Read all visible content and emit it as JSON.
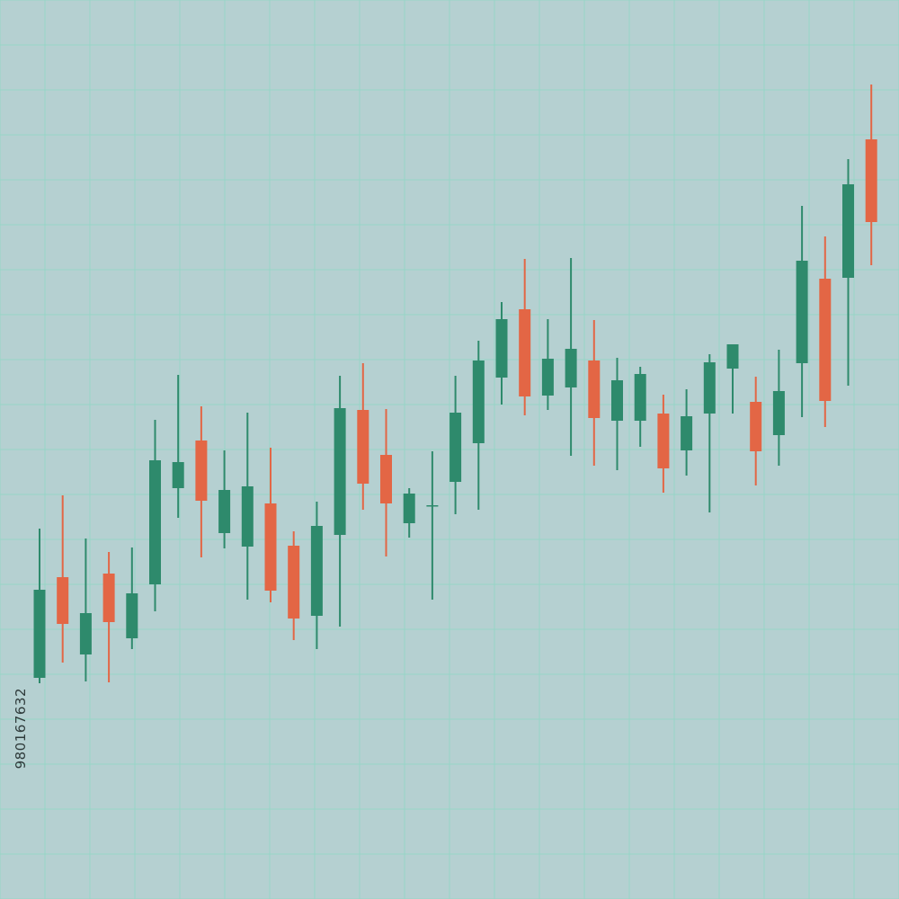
{
  "colors": {
    "background": "#b5d0d1",
    "grid": "#97d6c6",
    "up": "#2e8a6c",
    "down": "#e36645"
  },
  "watermark": {
    "id": "980167632"
  },
  "chart_data": {
    "type": "candlestick",
    "title": "",
    "xlabel": "",
    "ylabel": "",
    "grid": true,
    "legend": "none",
    "ylim": [
      0,
      1000
    ],
    "candles": [
      {
        "open": 246,
        "close": 344,
        "high": 412,
        "low": 240,
        "dir": "up"
      },
      {
        "open": 358,
        "close": 306,
        "high": 449,
        "low": 263,
        "dir": "down"
      },
      {
        "open": 272,
        "close": 318,
        "high": 401,
        "low": 242,
        "dir": "up"
      },
      {
        "open": 362,
        "close": 308,
        "high": 386,
        "low": 241,
        "dir": "down"
      },
      {
        "open": 290,
        "close": 340,
        "high": 391,
        "low": 278,
        "dir": "up"
      },
      {
        "open": 350,
        "close": 488,
        "high": 533,
        "low": 320,
        "dir": "up"
      },
      {
        "open": 457,
        "close": 486,
        "high": 583,
        "low": 424,
        "dir": "up"
      },
      {
        "open": 510,
        "close": 443,
        "high": 548,
        "low": 380,
        "dir": "down"
      },
      {
        "open": 407,
        "close": 455,
        "high": 499,
        "low": 390,
        "dir": "up"
      },
      {
        "open": 392,
        "close": 459,
        "high": 541,
        "low": 333,
        "dir": "up"
      },
      {
        "open": 440,
        "close": 343,
        "high": 502,
        "low": 330,
        "dir": "down"
      },
      {
        "open": 393,
        "close": 312,
        "high": 409,
        "low": 288,
        "dir": "down"
      },
      {
        "open": 315,
        "close": 415,
        "high": 442,
        "low": 278,
        "dir": "up"
      },
      {
        "open": 405,
        "close": 546,
        "high": 582,
        "low": 303,
        "dir": "up"
      },
      {
        "open": 544,
        "close": 462,
        "high": 596,
        "low": 433,
        "dir": "down"
      },
      {
        "open": 494,
        "close": 440,
        "high": 545,
        "low": 381,
        "dir": "down"
      },
      {
        "open": 418,
        "close": 451,
        "high": 457,
        "low": 402,
        "dir": "up"
      },
      {
        "open": 438,
        "close": 438,
        "high": 498,
        "low": 333,
        "dir": "up"
      },
      {
        "open": 464,
        "close": 541,
        "high": 582,
        "low": 428,
        "dir": "up"
      },
      {
        "open": 507,
        "close": 599,
        "high": 621,
        "low": 433,
        "dir": "up"
      },
      {
        "open": 580,
        "close": 645,
        "high": 664,
        "low": 550,
        "dir": "up"
      },
      {
        "open": 656,
        "close": 559,
        "high": 712,
        "low": 538,
        "dir": "down"
      },
      {
        "open": 560,
        "close": 601,
        "high": 645,
        "low": 544,
        "dir": "up"
      },
      {
        "open": 569,
        "close": 612,
        "high": 713,
        "low": 493,
        "dir": "up"
      },
      {
        "open": 599,
        "close": 535,
        "high": 644,
        "low": 482,
        "dir": "down"
      },
      {
        "open": 532,
        "close": 577,
        "high": 602,
        "low": 477,
        "dir": "up"
      },
      {
        "open": 532,
        "close": 584,
        "high": 592,
        "low": 503,
        "dir": "up"
      },
      {
        "open": 540,
        "close": 479,
        "high": 561,
        "low": 452,
        "dir": "down"
      },
      {
        "open": 499,
        "close": 537,
        "high": 567,
        "low": 471,
        "dir": "up"
      },
      {
        "open": 540,
        "close": 597,
        "high": 606,
        "low": 430,
        "dir": "up"
      },
      {
        "open": 590,
        "close": 617,
        "high": 617,
        "low": 540,
        "dir": "up"
      },
      {
        "open": 553,
        "close": 498,
        "high": 581,
        "low": 460,
        "dir": "down"
      },
      {
        "open": 516,
        "close": 565,
        "high": 611,
        "low": 482,
        "dir": "up"
      },
      {
        "open": 596,
        "close": 710,
        "high": 771,
        "low": 536,
        "dir": "up"
      },
      {
        "open": 690,
        "close": 554,
        "high": 737,
        "low": 525,
        "dir": "down"
      },
      {
        "open": 691,
        "close": 795,
        "high": 823,
        "low": 571,
        "dir": "up"
      },
      {
        "open": 845,
        "close": 753,
        "high": 906,
        "low": 705,
        "dir": "down"
      }
    ]
  }
}
